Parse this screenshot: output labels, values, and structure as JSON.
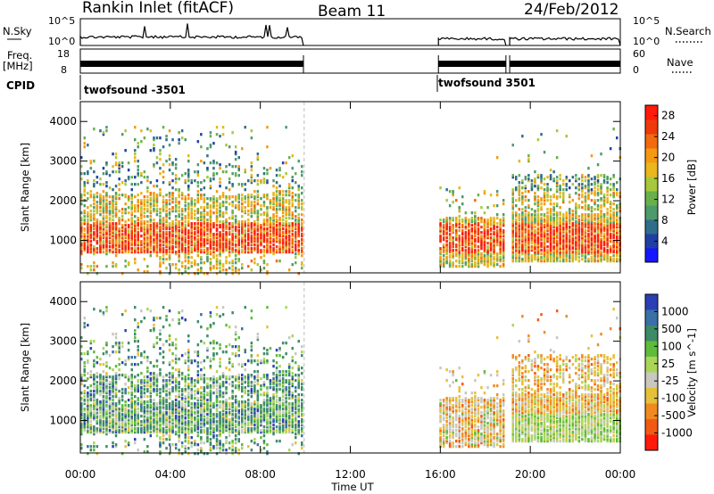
{
  "header": {
    "title": "Rankin Inlet (fitACF)",
    "beam": "Beam 11",
    "date": "24/Feb/2012"
  },
  "chart_data": [
    {
      "type": "line",
      "panel": "noise",
      "left_label": "N.Sky",
      "right_label": "N.Search",
      "left_ticks": [
        "10^5",
        "10^0"
      ],
      "right_ticks": [
        "10^5",
        "10^0"
      ],
      "scale": "log",
      "ylim": [
        1,
        100000
      ],
      "x_range_hours": [
        0,
        24
      ],
      "data_segments_ut": [
        [
          "00:00",
          "09:55"
        ],
        [
          "15:55",
          "18:55"
        ],
        [
          "19:05",
          "24:00"
        ]
      ]
    },
    {
      "type": "line",
      "panel": "frequency",
      "left_label": [
        "Freq.",
        "[MHz]"
      ],
      "right_label": "Nave",
      "left_ticks": [
        "18",
        "8"
      ],
      "right_ticks": [
        "60",
        "0"
      ],
      "ylim": [
        8,
        18
      ],
      "data_segments_ut": [
        [
          "00:00",
          "09:55"
        ],
        [
          "15:55",
          "18:55"
        ],
        [
          "19:05",
          "24:00"
        ]
      ]
    },
    {
      "type": "annotation",
      "panel": "cpid",
      "left_label": "CPID",
      "entries": [
        {
          "time_ut": "00:00",
          "text": "twofsound -3501"
        },
        {
          "time_ut": "15:55",
          "text": "twofsound 3501"
        }
      ]
    },
    {
      "type": "heatmap",
      "panel": "power",
      "ylabel": "Slant Range [km]",
      "yticks": [
        "1000",
        "2000",
        "3000",
        "4000"
      ],
      "ylim": [
        180,
        4500
      ],
      "colorbar_label": "Power [dB]",
      "colorbar_ticks": [
        "4",
        "8",
        "12",
        "16",
        "20",
        "24",
        "28"
      ],
      "colorbar_range": [
        0,
        30
      ],
      "colors": [
        "#1616ff",
        "#1e3fa6",
        "#2f6e8a",
        "#4d9a6b",
        "#6ab04a",
        "#a6c83c",
        "#e9b61c",
        "#f39a12",
        "#f26a0c",
        "#ee3a0a",
        "#ff1a0a"
      ]
    },
    {
      "type": "heatmap",
      "panel": "velocity",
      "ylabel": "Slant Range [km]",
      "yticks": [
        "1000",
        "2000",
        "3000",
        "4000"
      ],
      "ylim": [
        180,
        4500
      ],
      "xlabel": "Time UT",
      "xticks": [
        "00:00",
        "04:00",
        "08:00",
        "12:00",
        "16:00",
        "20:00",
        "00:00"
      ],
      "colorbar_label": "Velocity [m s^-1]",
      "colorbar_ticks": [
        "1000",
        "500",
        "100",
        "25",
        "-25",
        "-100",
        "-500",
        "-1000"
      ],
      "colors": [
        "#2b3fb4",
        "#3a6fa8",
        "#3d8a67",
        "#5fbb3a",
        "#a9d659",
        "#c8c8c0",
        "#e7c03a",
        "#f08a20",
        "#f25a12",
        "#ff1a0a"
      ]
    }
  ]
}
